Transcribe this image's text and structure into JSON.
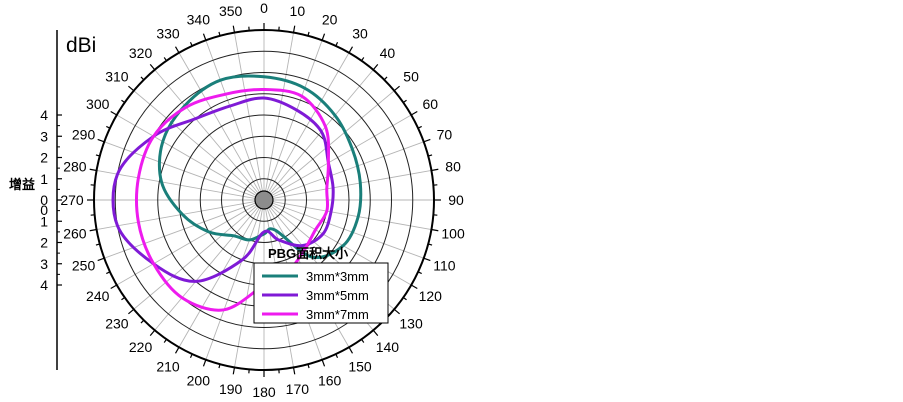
{
  "chart_data": {
    "type": "polar-line",
    "unit_label": "dBi",
    "axis_label": "增益",
    "radial_ticks_top": [
      "4",
      "3",
      "2",
      "1",
      "0"
    ],
    "radial_ticks_bottom": [
      "0",
      "1",
      "2",
      "3",
      "4"
    ],
    "angle_labels": [
      "0",
      "10",
      "20",
      "30",
      "40",
      "50",
      "60",
      "70",
      "80",
      "90",
      "100",
      "110",
      "120",
      "130",
      "140",
      "150",
      "160",
      "170",
      "180",
      "190",
      "200",
      "210",
      "220",
      "230",
      "240",
      "250",
      "260",
      "270",
      "280",
      "290",
      "300",
      "310",
      "320",
      "330",
      "340",
      "350"
    ],
    "radial_range": [
      -4,
      4
    ],
    "legend_title": "PBG面积大小",
    "legend_position": "lower-right",
    "grid": true,
    "series": [
      {
        "name": "3mm*3mm",
        "color": "#1a7f7a",
        "angles": [
          0,
          20,
          40,
          60,
          80,
          100,
          120,
          140,
          160,
          180,
          200,
          220,
          240,
          260,
          280,
          300,
          320,
          340
        ],
        "values": [
          1.8,
          1.6,
          1.2,
          0.8,
          0.6,
          0.5,
          0.3,
          -0.5,
          -2.5,
          -2.4,
          -2.0,
          -1.8,
          -1.0,
          -0.1,
          0.9,
          1.5,
          1.8,
          2.0
        ]
      },
      {
        "name": "3mm*5mm",
        "color": "#7f1ad6",
        "angles": [
          0,
          20,
          40,
          60,
          80,
          100,
          120,
          140,
          160,
          180,
          200,
          220,
          240,
          260,
          280,
          300,
          320,
          340
        ],
        "values": [
          0.8,
          0.5,
          0.2,
          -0.5,
          -0.7,
          -0.8,
          -0.8,
          -1.2,
          -2.0,
          -2.5,
          -1.0,
          1.0,
          2.0,
          3.0,
          3.0,
          2.0,
          1.0,
          0.7
        ]
      },
      {
        "name": "3mm*7mm",
        "color": "#ee1bee",
        "angles": [
          0,
          20,
          40,
          60,
          80,
          100,
          120,
          140,
          160,
          180,
          200,
          220,
          240,
          260,
          280,
          300,
          320,
          340
        ],
        "values": [
          1.2,
          1.2,
          0.5,
          -0.5,
          -1.0,
          -1.0,
          -1.2,
          -1.0,
          -0.5,
          0.0,
          1.5,
          2.0,
          2.0,
          2.0,
          2.0,
          2.0,
          1.7,
          1.3
        ]
      }
    ]
  }
}
